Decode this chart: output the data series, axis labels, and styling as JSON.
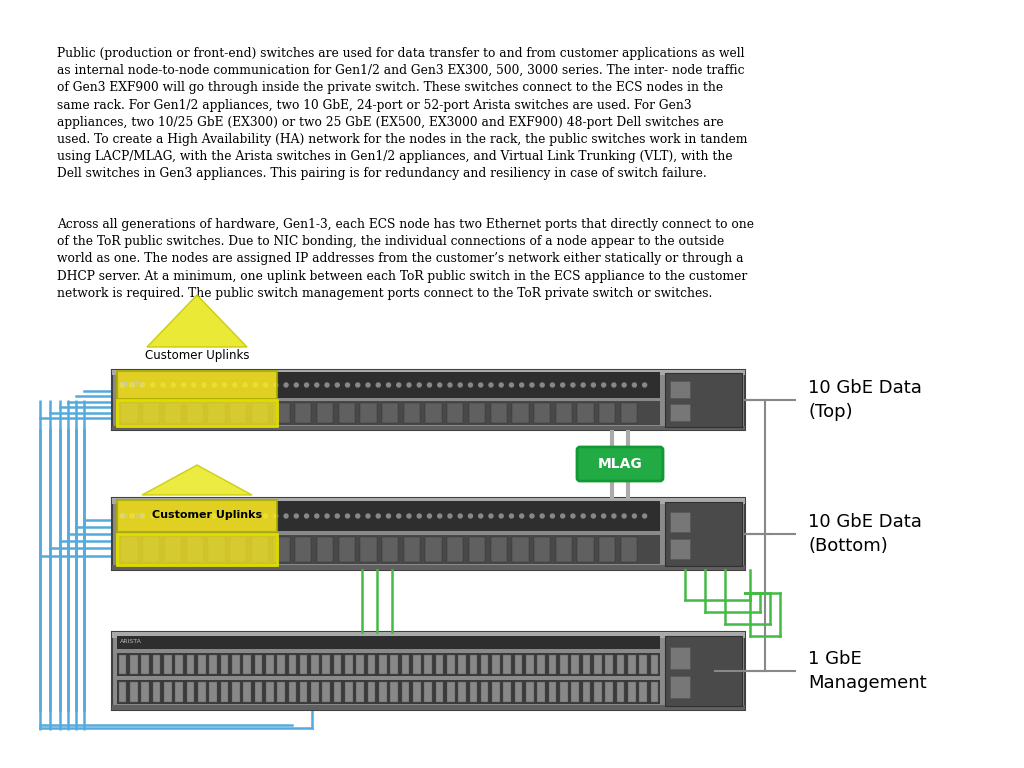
{
  "bg_color": "#ffffff",
  "para1": "Public (production or front-end) switches are used for data transfer to and from customer applications as well\nas internal node-to-node communication for Gen1/2 and Gen3 EX300, 500, 3000 series. The inter- node traffic\nof Gen3 EXF900 will go through inside the private switch. These switches connect to the ECS nodes in the\nsame rack. For Gen1/2 appliances, two 10 GbE, 24-port or 52-port Arista switches are used. For Gen3\nappliances, two 10/25 GbE (EX300) or two 25 GbE (EX500, EX3000 and EXF900) 48-port Dell switches are\nused. To create a High Availability (HA) network for the nodes in the rack, the public switches work in tandem\nusing LACP/MLAG, with the Arista switches in Gen1/2 appliances, and Virtual Link Trunking (VLT), with the\nDell switches in Gen3 appliances. This pairing is for redundancy and resiliency in case of switch failure.",
  "para2": "Across all generations of hardware, Gen1-3, each ECS node has two Ethernet ports that directly connect to one\nof the ToR public switches. Due to NIC bonding, the individual connections of a node appear to the outside\nworld as one. The nodes are assigned IP addresses from the customer’s network either statically or through a\nDHCP server. At a minimum, one uplink between each ToR public switch in the ECS appliance to the customer\nnetwork is required. The public switch management ports connect to the ToR private switch or switches.",
  "label_top": "10 GbE Data\n(Top)",
  "label_bottom": "10 GbE Data\n(Bottom)",
  "label_mgmt": "1 GbE\nManagement",
  "mlag_label": "MLAG",
  "uplink_label": "Customer Uplinks",
  "mlag_green": "#33aa44",
  "mlag_text": "#ffffff",
  "line_blue": "#55aadd",
  "line_green": "#44bb44",
  "line_gray": "#999999",
  "sw_body": "#888888",
  "sw_dark": "#555555",
  "sw_port_top": "#333333",
  "sw_port_bottom": "#444444",
  "yellow_hi": "#ffff44",
  "yellow_outline": "#cccc00"
}
